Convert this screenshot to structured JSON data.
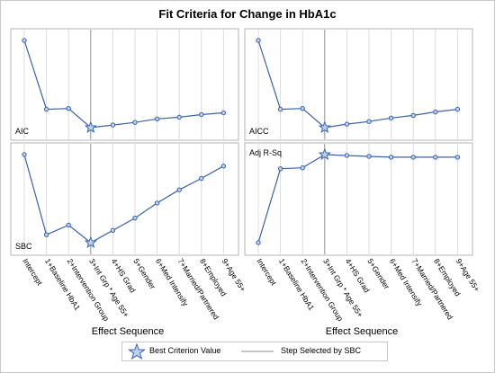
{
  "chart_data": {
    "type": "line",
    "title": "Fit Criteria for Change in HbA1c",
    "categories": [
      "Intercept",
      "1+Baseline HbA1",
      "2+Intervention Group",
      "3+Int Grp * Age 55+",
      "4+HS Grad",
      "5+Gender",
      "6+Med Intensify",
      "7+Married/Partnered",
      "8+Employed",
      "9+Age 55+"
    ],
    "xlabel": "Effect Sequence",
    "selected_step_index": 3,
    "panels": [
      {
        "name": "AIC",
        "values": [
          100,
          21,
          22,
          0,
          3,
          6,
          10,
          12,
          15,
          17
        ],
        "best_index": 3
      },
      {
        "name": "AICC",
        "values": [
          100,
          21,
          22,
          0,
          4,
          7,
          11,
          14,
          18,
          21
        ],
        "best_index": 3
      },
      {
        "name": "SBC",
        "values": [
          100,
          9,
          20,
          0,
          14,
          28,
          45,
          60,
          73,
          87
        ],
        "best_index": 3
      },
      {
        "name": "Adj R-Sq",
        "values": [
          0,
          84,
          85,
          100,
          99,
          98,
          97,
          97,
          97,
          97
        ],
        "best_index": 3
      }
    ],
    "legend": {
      "best_label": "Best Criterion Value",
      "step_label": "Step Selected by SBC"
    },
    "colors": {
      "line": "#3a62a9",
      "marker_fill": "#bcd0ee",
      "ref_line": "#909090",
      "grid": "#dcdcdc"
    },
    "axes": {
      "y_ticks": false,
      "x_grid": true,
      "y_grid": false
    },
    "legend_position": "bottom"
  }
}
